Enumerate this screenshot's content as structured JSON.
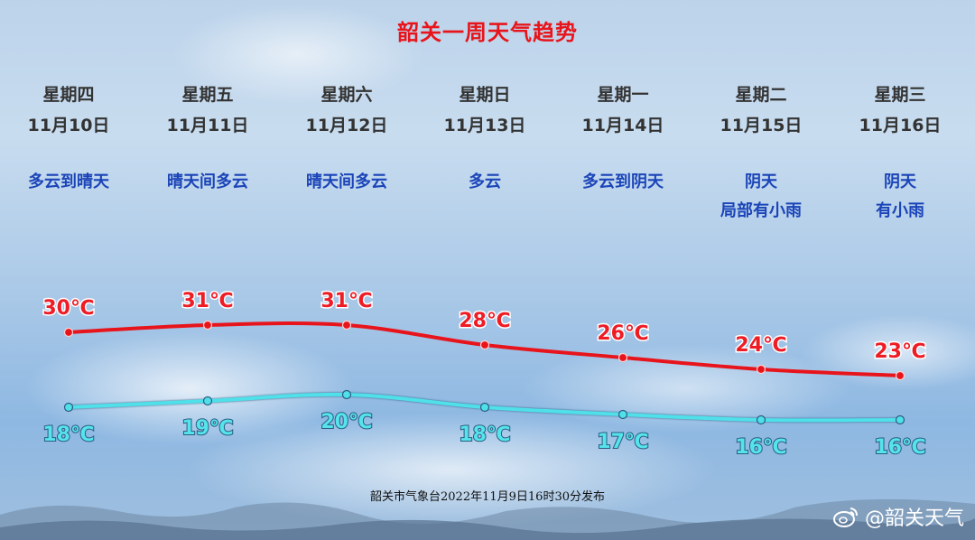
{
  "title": "韶关一周天气趋势",
  "days": [
    {
      "weekday": "星期四",
      "date": "11月10日",
      "weather": [
        "多云到晴天"
      ]
    },
    {
      "weekday": "星期五",
      "date": "11月11日",
      "weather": [
        "晴天间多云"
      ]
    },
    {
      "weekday": "星期六",
      "date": "11月12日",
      "weather": [
        "晴天间多云"
      ]
    },
    {
      "weekday": "星期日",
      "date": "11月13日",
      "weather": [
        "多云"
      ]
    },
    {
      "weekday": "星期一",
      "date": "11月14日",
      "weather": [
        "多云到阴天"
      ]
    },
    {
      "weekday": "星期二",
      "date": "11月15日",
      "weather": [
        "阴天",
        "局部有小雨"
      ]
    },
    {
      "weekday": "星期三",
      "date": "11月16日",
      "weather": [
        "阴天",
        "有小雨"
      ]
    }
  ],
  "chart_data": {
    "type": "line",
    "x": [
      "11月10日",
      "11月11日",
      "11月12日",
      "11月13日",
      "11月14日",
      "11月15日",
      "11月16日"
    ],
    "series": [
      {
        "values": [
          30,
          31,
          31,
          28,
          26,
          24,
          23
        ],
        "labels": [
          "30℃",
          "31℃",
          "31℃",
          "28℃",
          "26℃",
          "24℃",
          "23℃"
        ],
        "color": "#e8141b"
      },
      {
        "values": [
          18,
          19,
          20,
          18,
          17,
          16,
          16
        ],
        "labels": [
          "18℃",
          "19℃",
          "20℃",
          "18℃",
          "17℃",
          "16℃",
          "16℃"
        ],
        "color": "#4fe0ea"
      }
    ],
    "grid": false,
    "legend": "none"
  },
  "footer": "韶关市气象台2022年11月9日16时30分发布",
  "watermark": "@韶关天气",
  "icons": {
    "watermark": "weibo-icon"
  }
}
